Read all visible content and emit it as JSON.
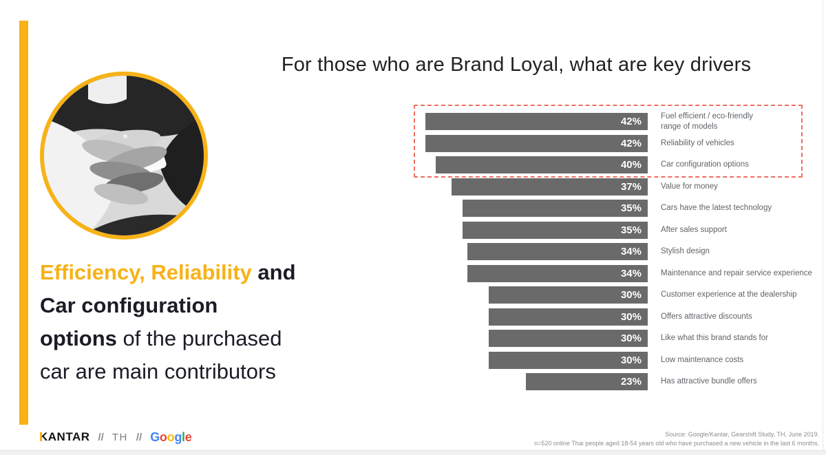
{
  "title": "For those who are Brand Loyal, what are key drivers",
  "headline": {
    "seg_yellow": "Efficiency, Reliability",
    "seg_and": " and",
    "line2": "Car configuration",
    "seg_options": "options",
    "seg_rest": " of the purchased",
    "line4": "car are main contributors"
  },
  "chart_data": {
    "type": "bar",
    "orientation": "horizontal",
    "unit": "%",
    "categories": [
      "Fuel efficient / eco-friendly\nrange of models",
      "Reliability of vehicles",
      "Car configuration options",
      "Value for money",
      "Cars have the latest technology",
      "After sales support",
      "Stylish design",
      "Maintenance and repair service experience",
      "Customer experience at the dealership",
      "Offers attractive discounts",
      "Like what this brand stands for",
      "Low maintenance costs",
      "Has attractive bundle offers"
    ],
    "values": [
      42,
      42,
      40,
      37,
      35,
      35,
      34,
      34,
      30,
      30,
      30,
      30,
      23
    ],
    "xlim": [
      0,
      45
    ],
    "bars_right_aligned": true,
    "bar_color": "#6A6A6A",
    "value_label_color": "#FFFFFF",
    "category_label_color": "#5F6368",
    "highlight": {
      "rows_boxed": [
        0,
        1,
        2
      ],
      "box_style": "red-dashed"
    }
  },
  "footer": {
    "kantar": "KANTAR",
    "sep1": "//",
    "region": "TH",
    "sep2": "//",
    "google_letters": [
      {
        "ch": "G",
        "color": "#4285F4"
      },
      {
        "ch": "o",
        "color": "#EA4335"
      },
      {
        "ch": "o",
        "color": "#FBBC05"
      },
      {
        "ch": "g",
        "color": "#4285F4"
      },
      {
        "ch": "l",
        "color": "#34A853"
      },
      {
        "ch": "e",
        "color": "#EA4335"
      }
    ]
  },
  "source": {
    "line1": "Source: Google/Kantar, Gearshift Study, TH, June 2019.",
    "line2": "n=520 online Thai people aged 18-54 years old who have purchased a new vehicle in the last 6 months."
  },
  "colors": {
    "accent_yellow": "#F7B217",
    "bar_gray": "#6A6A6A",
    "highlight_red": "#EE6D60",
    "text_dark": "#1C1C26"
  }
}
